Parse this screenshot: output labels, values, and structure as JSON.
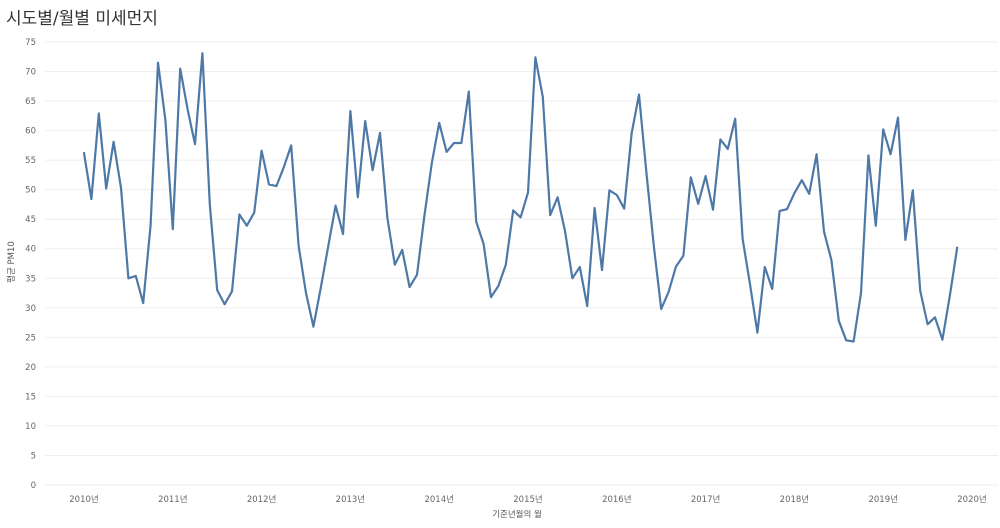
{
  "title": "시도별/월별 미세먼지",
  "colors": {
    "line": "#4e79a7",
    "grid": "#eeeeee",
    "text": "#666666"
  },
  "chart_data": {
    "type": "line",
    "title": "시도별/월별 미세먼지",
    "xlabel": "기준년월의 월",
    "ylabel": "평균 PM10",
    "ylim": [
      0,
      75
    ],
    "yticks": [
      0,
      5,
      10,
      15,
      20,
      25,
      30,
      35,
      40,
      45,
      50,
      55,
      60,
      65,
      70,
      75
    ],
    "xticks": [
      "2010년",
      "2011년",
      "2012년",
      "2013년",
      "2014년",
      "2015년",
      "2016년",
      "2017년",
      "2018년",
      "2019년",
      "2020년"
    ],
    "grid": true,
    "start": "2010-01",
    "series": [
      {
        "name": "평균 PM10",
        "values": [
          56.2,
          48.4,
          62.9,
          50.2,
          58.1,
          50.3,
          35.0,
          35.4,
          30.8,
          44.0,
          71.5,
          61.8,
          43.3,
          70.5,
          63.6,
          57.7,
          73.1,
          47.5,
          33.0,
          30.6,
          32.8,
          45.8,
          43.9,
          46.1,
          56.6,
          50.9,
          50.6,
          53.8,
          57.5,
          40.5,
          32.5,
          26.8,
          33.4,
          40.4,
          47.3,
          42.5,
          63.3,
          48.7,
          61.6,
          53.3,
          59.6,
          45.2,
          37.3,
          39.8,
          33.5,
          35.6,
          45.6,
          54.5,
          61.3,
          56.4,
          57.9,
          57.9,
          66.6,
          44.6,
          40.8,
          31.8,
          33.7,
          37.3,
          46.5,
          45.3,
          49.5,
          72.4,
          65.7,
          45.7,
          48.7,
          43.0,
          35.0,
          36.9,
          30.3,
          46.9,
          36.4,
          49.9,
          49.1,
          46.8,
          59.5,
          66.1,
          52.9,
          40.5,
          29.8,
          32.7,
          37.0,
          38.8,
          52.1,
          47.6,
          52.3,
          46.6,
          58.5,
          56.9,
          62.0,
          41.7,
          34.0,
          25.8,
          36.9,
          33.2,
          46.4,
          46.7,
          49.4,
          51.6,
          49.3,
          56.0,
          42.9,
          38.1,
          27.8,
          24.5,
          24.3,
          32.5,
          55.8,
          43.9,
          60.2,
          56.0,
          62.2,
          41.5,
          49.9,
          32.9,
          27.2,
          28.4,
          24.6,
          32.0,
          40.2
        ]
      }
    ]
  }
}
